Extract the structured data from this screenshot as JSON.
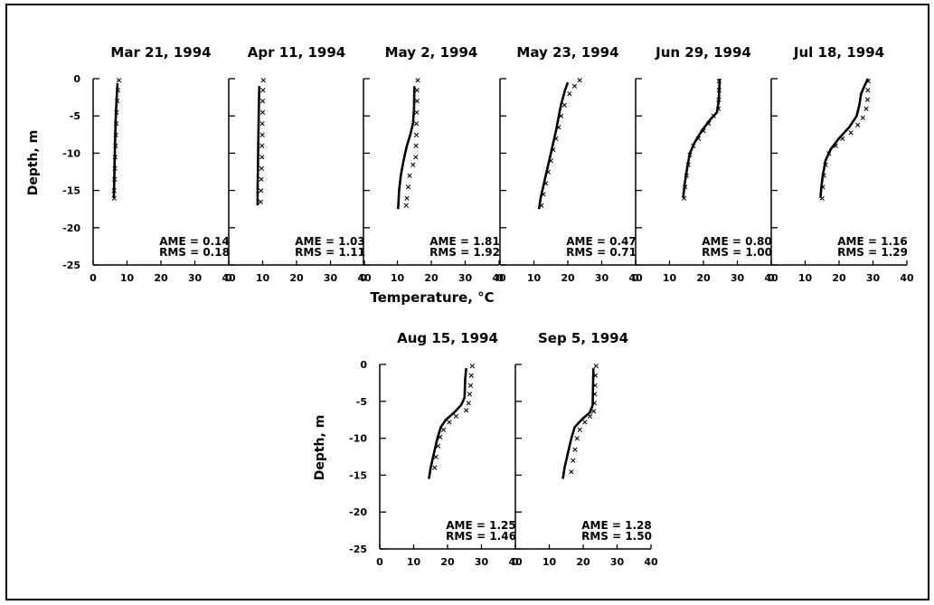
{
  "figure": {
    "colors": {
      "ink": "#000000",
      "background": "#ffffff"
    },
    "shared_xlabel": "Temperature, °C",
    "ylabel": "Depth, m"
  },
  "chart_data": [
    {
      "type": "line",
      "title": "Mar 21, 1994",
      "xlabel": "",
      "ylabel": "Depth, m",
      "xlim": [
        0,
        40
      ],
      "ylim": [
        -25,
        0
      ],
      "xticks": [
        "0",
        "10",
        "20",
        "30",
        "40"
      ],
      "yticks": [
        "0",
        "-5",
        "-10",
        "-15",
        "-20",
        "-25"
      ],
      "stats": {
        "AME": "0.14",
        "RMS": "0.18"
      },
      "series": [
        {
          "marker": "line",
          "points": [
            [
              7.2,
              -0.6
            ],
            [
              7.0,
              -2
            ],
            [
              6.8,
              -4
            ],
            [
              6.6,
              -6
            ],
            [
              6.5,
              -8
            ],
            [
              6.4,
              -10
            ],
            [
              6.3,
              -12
            ],
            [
              6.2,
              -14
            ],
            [
              6.1,
              -16
            ]
          ]
        },
        {
          "marker": "x",
          "points": [
            [
              7.6,
              -0.2
            ],
            [
              7.3,
              -1.5
            ],
            [
              7.1,
              -3
            ],
            [
              6.9,
              -4.5
            ],
            [
              6.8,
              -6
            ],
            [
              6.7,
              -7.5
            ],
            [
              6.6,
              -9
            ],
            [
              6.5,
              -10.5
            ],
            [
              6.4,
              -12
            ],
            [
              6.3,
              -13.5
            ],
            [
              6.2,
              -15
            ],
            [
              6.2,
              -16
            ]
          ]
        }
      ]
    },
    {
      "type": "line",
      "title": "Apr 11, 1994",
      "xlabel": "",
      "ylabel": "",
      "xlim": [
        0,
        40
      ],
      "ylim": [
        -25,
        0
      ],
      "xticks": [
        "0",
        "10",
        "20",
        "30",
        "40"
      ],
      "yticks": [],
      "stats": {
        "AME": "1.03",
        "RMS": "1.11"
      },
      "series": [
        {
          "marker": "line",
          "points": [
            [
              9.0,
              -1
            ],
            [
              8.9,
              -3
            ],
            [
              8.8,
              -6
            ],
            [
              8.7,
              -9
            ],
            [
              8.6,
              -12
            ],
            [
              8.5,
              -15
            ],
            [
              8.5,
              -17
            ]
          ]
        },
        {
          "marker": "x",
          "points": [
            [
              10.2,
              -0.2
            ],
            [
              10.1,
              -1.5
            ],
            [
              10.0,
              -3
            ],
            [
              10.0,
              -4.5
            ],
            [
              9.9,
              -6
            ],
            [
              9.9,
              -7.5
            ],
            [
              9.8,
              -9
            ],
            [
              9.8,
              -10.5
            ],
            [
              9.7,
              -12
            ],
            [
              9.6,
              -13.5
            ],
            [
              9.5,
              -15
            ],
            [
              9.4,
              -16.5
            ]
          ]
        }
      ]
    },
    {
      "type": "line",
      "title": "May  2, 1994",
      "xlabel": "",
      "ylabel": "",
      "xlim": [
        0,
        40
      ],
      "ylim": [
        -25,
        0
      ],
      "xticks": [
        "0",
        "10",
        "20",
        "30",
        "40"
      ],
      "yticks": [],
      "stats": {
        "AME": "1.81",
        "RMS": "1.92"
      },
      "series": [
        {
          "marker": "line",
          "points": [
            [
              15.0,
              -1
            ],
            [
              14.9,
              -4
            ],
            [
              14.6,
              -6
            ],
            [
              13.8,
              -7.5
            ],
            [
              12.8,
              -9
            ],
            [
              11.8,
              -11
            ],
            [
              11.0,
              -13
            ],
            [
              10.5,
              -15
            ],
            [
              10.2,
              -17.5
            ]
          ]
        },
        {
          "marker": "x",
          "points": [
            [
              16.0,
              -0.2
            ],
            [
              15.8,
              -1.5
            ],
            [
              15.8,
              -3
            ],
            [
              15.7,
              -4.5
            ],
            [
              15.6,
              -6
            ],
            [
              15.6,
              -7.5
            ],
            [
              15.5,
              -9
            ],
            [
              15.4,
              -10.5
            ],
            [
              14.6,
              -11.5
            ],
            [
              13.6,
              -13
            ],
            [
              13.2,
              -14.5
            ],
            [
              12.8,
              -16
            ],
            [
              12.6,
              -17
            ]
          ]
        }
      ]
    },
    {
      "type": "line",
      "title": "May 23, 1994",
      "xlabel": "",
      "ylabel": "",
      "xlim": [
        0,
        40
      ],
      "ylim": [
        -25,
        0
      ],
      "xticks": [
        "0",
        "10",
        "20",
        "30",
        "40"
      ],
      "yticks": [],
      "stats": {
        "AME": "0.47",
        "RMS": "0.71"
      },
      "series": [
        {
          "marker": "line",
          "points": [
            [
              20.0,
              -0.5
            ],
            [
              19.2,
              -1.5
            ],
            [
              18.0,
              -3.5
            ],
            [
              16.5,
              -7
            ],
            [
              15.0,
              -10
            ],
            [
              13.5,
              -13
            ],
            [
              12.0,
              -16
            ],
            [
              11.5,
              -17.5
            ]
          ]
        },
        {
          "marker": "x",
          "points": [
            [
              23.5,
              -0.2
            ],
            [
              22.0,
              -1
            ],
            [
              20.5,
              -2
            ],
            [
              19.0,
              -3.5
            ],
            [
              18.0,
              -5
            ],
            [
              17.3,
              -6.5
            ],
            [
              16.5,
              -8
            ],
            [
              15.7,
              -9.5
            ],
            [
              15.0,
              -11
            ],
            [
              14.2,
              -12.5
            ],
            [
              13.5,
              -14
            ],
            [
              12.8,
              -15.5
            ],
            [
              12.2,
              -17
            ]
          ]
        }
      ]
    },
    {
      "type": "line",
      "title": "Jun 29, 1994",
      "xlabel": "",
      "ylabel": "",
      "xlim": [
        0,
        40
      ],
      "ylim": [
        -25,
        0
      ],
      "xticks": [
        "0",
        "10",
        "20",
        "30",
        "40"
      ],
      "yticks": [],
      "stats": {
        "AME": "0.80",
        "RMS": "1.00"
      },
      "series": [
        {
          "marker": "line",
          "points": [
            [
              24.8,
              0
            ],
            [
              24.5,
              -3
            ],
            [
              24.0,
              -4.5
            ],
            [
              22.0,
              -5.5
            ],
            [
              19.5,
              -7
            ],
            [
              17.5,
              -8.5
            ],
            [
              16.0,
              -10
            ],
            [
              15.2,
              -12
            ],
            [
              14.5,
              -14
            ],
            [
              14.0,
              -16
            ]
          ]
        },
        {
          "marker": "x",
          "points": [
            [
              24.6,
              -0.3
            ],
            [
              24.6,
              -1.5
            ],
            [
              24.5,
              -2.8
            ],
            [
              24.4,
              -4
            ],
            [
              23.0,
              -5
            ],
            [
              21.5,
              -6
            ],
            [
              20.0,
              -7
            ],
            [
              18.5,
              -8
            ],
            [
              17.0,
              -9
            ],
            [
              16.0,
              -10.2
            ],
            [
              15.5,
              -11.5
            ],
            [
              15.0,
              -13
            ],
            [
              14.6,
              -14.5
            ],
            [
              14.3,
              -16
            ]
          ]
        }
      ]
    },
    {
      "type": "line",
      "title": "Jul 18, 1994",
      "xlabel": "",
      "ylabel": "",
      "xlim": [
        0,
        40
      ],
      "ylim": [
        -25,
        0
      ],
      "xticks": [
        "0",
        "10",
        "20",
        "30",
        "40"
      ],
      "yticks": [],
      "stats": {
        "AME": "1.16",
        "RMS": "1.29"
      },
      "series": [
        {
          "marker": "line",
          "points": [
            [
              28.5,
              0
            ],
            [
              27.5,
              -1
            ],
            [
              26.5,
              -2
            ],
            [
              26.0,
              -3.5
            ],
            [
              25.2,
              -5
            ],
            [
              23.0,
              -6.5
            ],
            [
              20.0,
              -8
            ],
            [
              17.5,
              -9.5
            ],
            [
              16.0,
              -11
            ],
            [
              15.2,
              -13
            ],
            [
              14.8,
              -14.5
            ],
            [
              14.5,
              -16
            ]
          ]
        },
        {
          "marker": "x",
          "points": [
            [
              28.6,
              -0.3
            ],
            [
              28.5,
              -1.5
            ],
            [
              28.4,
              -2.8
            ],
            [
              28.0,
              -4
            ],
            [
              27.0,
              -5.2
            ],
            [
              25.5,
              -6.2
            ],
            [
              23.5,
              -7.2
            ],
            [
              21.0,
              -8
            ],
            [
              19.0,
              -9
            ],
            [
              17.0,
              -10
            ],
            [
              16.0,
              -11.5
            ],
            [
              15.5,
              -13
            ],
            [
              15.2,
              -14.5
            ],
            [
              15.0,
              -16
            ]
          ]
        }
      ]
    },
    {
      "type": "line",
      "title": "Aug 15, 1994",
      "xlabel": "",
      "ylabel": "Depth, m",
      "xlim": [
        0,
        40
      ],
      "ylim": [
        -25,
        0
      ],
      "xticks": [
        "0",
        "10",
        "20",
        "30",
        "40"
      ],
      "yticks": [
        "0",
        "-5",
        "-10",
        "-15",
        "-20",
        "-25"
      ],
      "stats": {
        "AME": "1.25",
        "RMS": "1.46"
      },
      "series": [
        {
          "marker": "line",
          "points": [
            [
              25.5,
              -0.5
            ],
            [
              25.2,
              -2
            ],
            [
              25.0,
              -4.5
            ],
            [
              24.0,
              -5.5
            ],
            [
              22.0,
              -6.5
            ],
            [
              19.5,
              -7.5
            ],
            [
              18.0,
              -8.5
            ],
            [
              17.0,
              -10
            ],
            [
              16.0,
              -12
            ],
            [
              15.0,
              -14
            ],
            [
              14.5,
              -15.5
            ]
          ]
        },
        {
          "marker": "x",
          "points": [
            [
              27.3,
              -0.2
            ],
            [
              27.0,
              -1.5
            ],
            [
              26.8,
              -2.8
            ],
            [
              26.5,
              -4
            ],
            [
              26.2,
              -5.2
            ],
            [
              25.5,
              -6.2
            ],
            [
              22.5,
              -7
            ],
            [
              20.5,
              -7.8
            ],
            [
              18.8,
              -8.8
            ],
            [
              17.8,
              -9.8
            ],
            [
              17.2,
              -11
            ],
            [
              16.6,
              -12.5
            ],
            [
              16.2,
              -14
            ]
          ]
        }
      ]
    },
    {
      "type": "line",
      "title": "Sep  5, 1994",
      "xlabel": "",
      "ylabel": "",
      "xlim": [
        0,
        40
      ],
      "ylim": [
        -25,
        0
      ],
      "xticks": [
        "0",
        "10",
        "20",
        "30",
        "40"
      ],
      "yticks": [],
      "stats": {
        "AME": "1.28",
        "RMS": "1.50"
      },
      "series": [
        {
          "marker": "line",
          "points": [
            [
              23.0,
              -0.5
            ],
            [
              22.9,
              -3
            ],
            [
              22.8,
              -5.5
            ],
            [
              22.0,
              -6.5
            ],
            [
              19.5,
              -7.5
            ],
            [
              17.5,
              -8.5
            ],
            [
              16.5,
              -10
            ],
            [
              15.5,
              -12
            ],
            [
              14.5,
              -14
            ],
            [
              14.0,
              -15.5
            ]
          ]
        },
        {
          "marker": "x",
          "points": [
            [
              23.8,
              -0.2
            ],
            [
              23.6,
              -1.5
            ],
            [
              23.5,
              -2.8
            ],
            [
              23.4,
              -4
            ],
            [
              23.3,
              -5.2
            ],
            [
              23.1,
              -6.3
            ],
            [
              22.0,
              -7
            ],
            [
              20.5,
              -7.8
            ],
            [
              19.0,
              -8.8
            ],
            [
              18.2,
              -10
            ],
            [
              17.6,
              -11.5
            ],
            [
              17.0,
              -13
            ],
            [
              16.5,
              -14.5
            ]
          ]
        }
      ]
    }
  ]
}
